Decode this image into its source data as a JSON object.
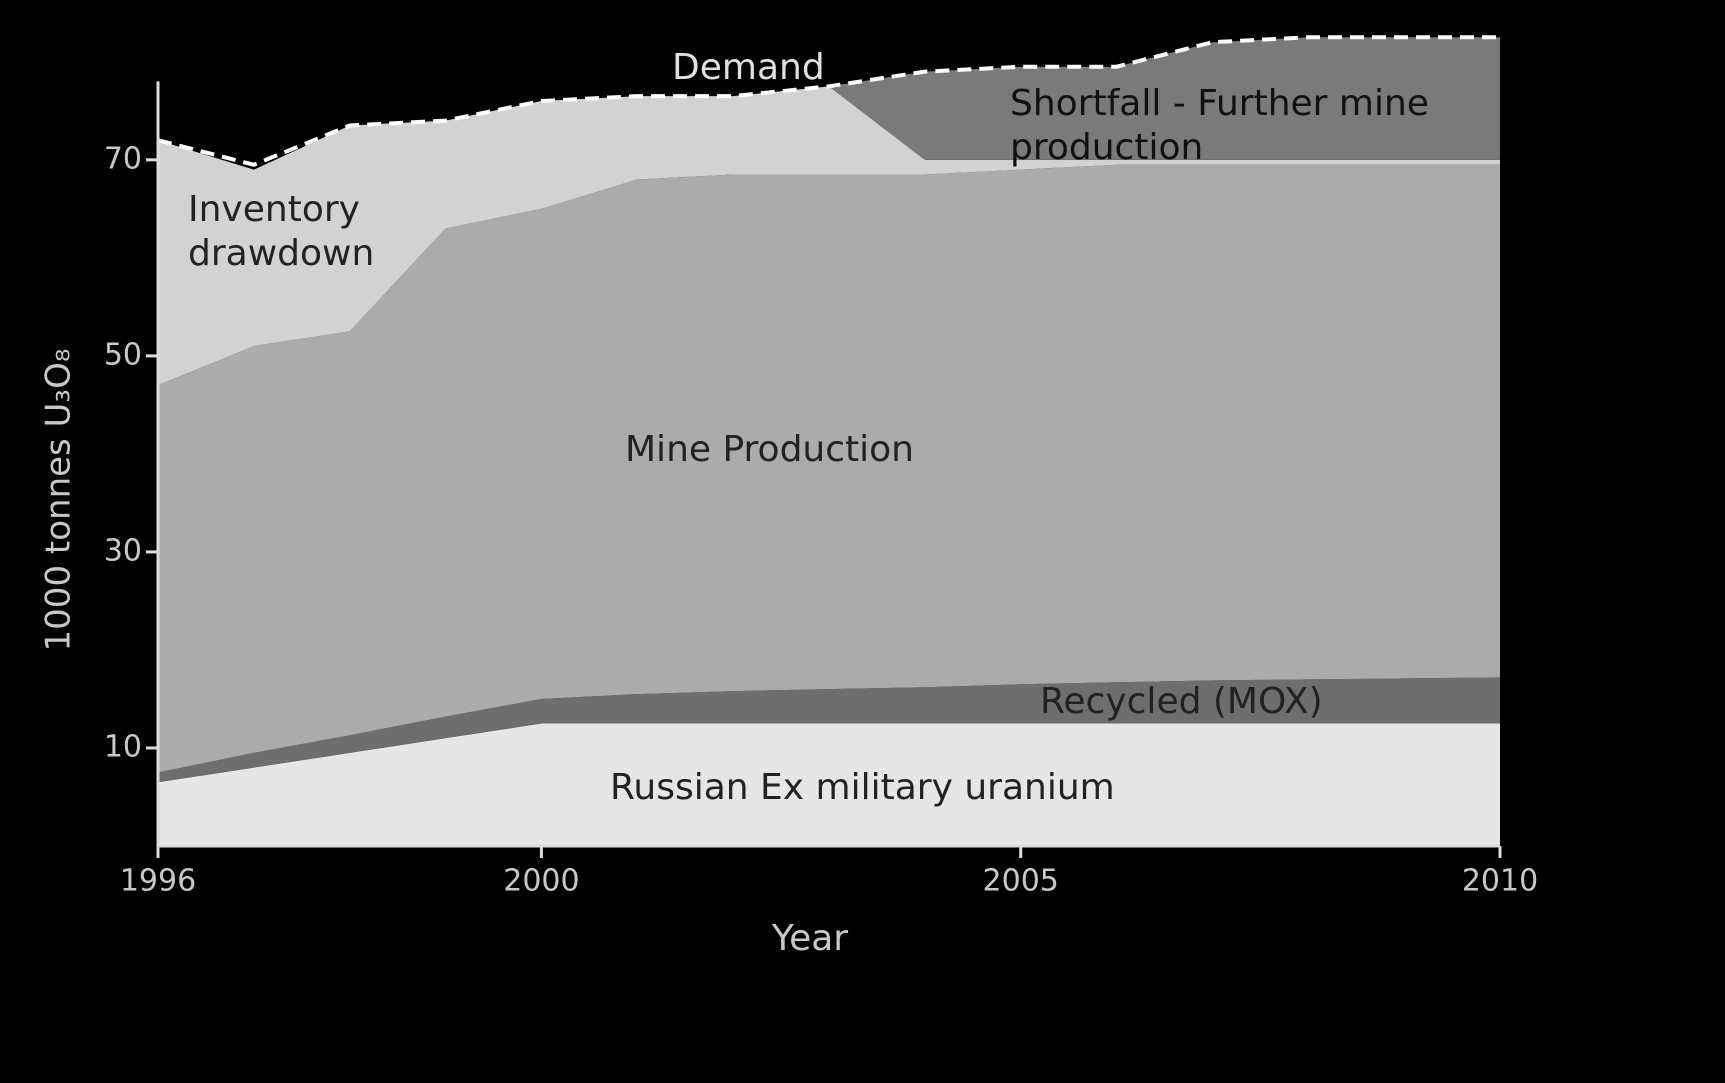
{
  "chart_data": {
    "type": "stacked_area",
    "x": [
      1996,
      1997,
      1998,
      1999,
      2000,
      2001,
      2002,
      2003,
      2004,
      2005,
      2006,
      2007,
      2008,
      2009,
      2010
    ],
    "series": [
      {
        "name": "Russian Ex military uranium",
        "color": "#e6e6e6",
        "values": [
          6.5,
          8,
          9.5,
          11,
          12.5,
          12.5,
          12.5,
          12.5,
          12.5,
          12.5,
          12.5,
          12.5,
          12.5,
          12.5,
          12.5
        ]
      },
      {
        "name": "Recycled (MOX)",
        "color": "#6e6e6e",
        "values": [
          1,
          1.5,
          1.8,
          2.2,
          2.5,
          3,
          3.3,
          3.5,
          3.7,
          4,
          4.2,
          4.4,
          4.5,
          4.6,
          4.7
        ]
      },
      {
        "name": "Mine Production",
        "color": "#ababab",
        "values": [
          39.5,
          41.5,
          41.2,
          49.8,
          50,
          52.5,
          52.7,
          52.5,
          52.3,
          52.5,
          52.8,
          52.6,
          52.5,
          52.4,
          52.3
        ]
      },
      {
        "name": "Inventory drawdown",
        "color": "#d2d2d2",
        "values": [
          25,
          18,
          21,
          11,
          11,
          8.5,
          8,
          9,
          1.5,
          1,
          0.5,
          0.5,
          0.5,
          0.5,
          0.5
        ]
      },
      {
        "name": "Shortfall - Further mine production",
        "color": "#7a7a7a",
        "values": [
          0,
          0,
          0,
          0,
          0,
          0,
          0,
          0,
          9,
          9.5,
          9.5,
          12,
          12.5,
          12.5,
          12.5
        ]
      }
    ],
    "demand": {
      "name": "Demand",
      "color": "#ffffff",
      "values": [
        72,
        69.5,
        73.5,
        74,
        76,
        76.5,
        76.5,
        77.5,
        79,
        79.5,
        79.5,
        82,
        82.5,
        82.5,
        82.5
      ]
    },
    "xlabel": "Year",
    "ylabel": "1000 tonnes U₃O₈",
    "xlim": [
      1996,
      2010
    ],
    "xticks": [
      1996,
      2000,
      2005,
      2010
    ],
    "ylim": [
      0,
      86
    ],
    "yticks": [
      10,
      30,
      50,
      70
    ]
  }
}
